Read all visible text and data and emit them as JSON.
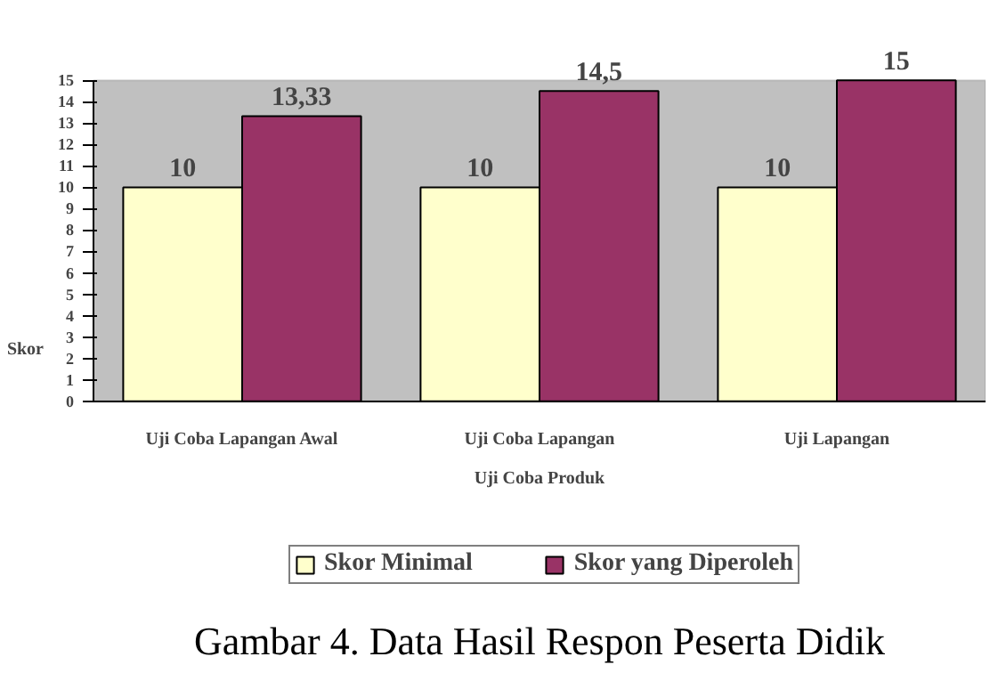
{
  "chart_data": {
    "type": "bar",
    "categories": [
      "Uji Coba Lapangan Awal",
      "Uji Coba Lapangan",
      "Uji Lapangan"
    ],
    "xlabel": "Uji Coba Produk",
    "ylabel": "Skor",
    "series": [
      {
        "name": "Skor Minimal",
        "color": "#ffffcc",
        "values": [
          10,
          10,
          10
        ],
        "value_labels": [
          "10",
          "10",
          "10"
        ]
      },
      {
        "name": "Skor yang Diperoleh",
        "color": "#993366",
        "values": [
          13.33,
          14.5,
          15
        ],
        "value_labels": [
          "13,33",
          "14,5",
          "15"
        ]
      }
    ],
    "ylim": [
      0,
      15
    ],
    "yticks": [
      0,
      1,
      2,
      3,
      4,
      5,
      6,
      7,
      8,
      9,
      10,
      11,
      12,
      13,
      14,
      15
    ],
    "grid": false,
    "legend": "bottom",
    "annotations": [
      "Gambar 4. Data Hasil Respon Peserta Didik"
    ]
  }
}
